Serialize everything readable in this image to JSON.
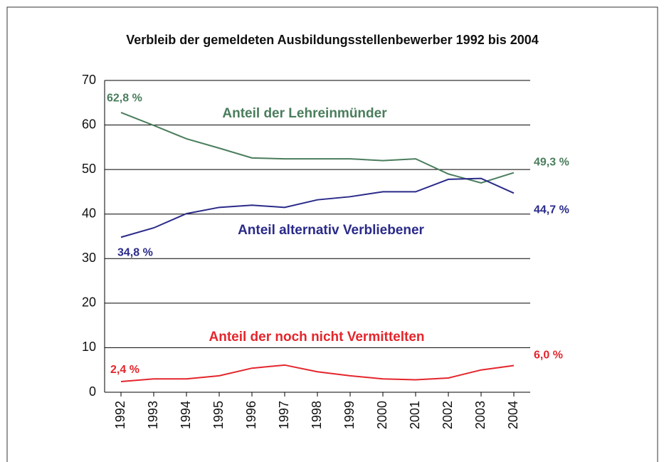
{
  "chart_data": {
    "type": "line",
    "title": "Verbleib der gemeldeten Ausbildungsstellenbewerber 1992 bis 2004",
    "categories": [
      "1992",
      "1993",
      "1994",
      "1995",
      "1996",
      "1997",
      "1998",
      "1999",
      "2000",
      "2001",
      "2002",
      "2003",
      "2004"
    ],
    "ylim": [
      0,
      70
    ],
    "yticks": [
      0,
      10,
      20,
      30,
      40,
      50,
      60,
      70
    ],
    "grid": true,
    "series": [
      {
        "name": "Anteil der Lehreinmünder",
        "color": "#4a7d5c",
        "values": [
          62.8,
          59.9,
          56.9,
          54.8,
          52.6,
          52.4,
          52.4,
          52.4,
          52.0,
          52.4,
          49.0,
          47.0,
          49.3
        ],
        "value_labels": [
          "62,8 %",
          null,
          null,
          null,
          null,
          null,
          null,
          null,
          null,
          null,
          null,
          null,
          "49,3 %"
        ]
      },
      {
        "name": "Anteil alternativ Verbliebener",
        "color": "#2a2a8a",
        "values": [
          34.8,
          36.9,
          40.1,
          41.5,
          42.0,
          41.5,
          43.2,
          43.9,
          45.0,
          45.0,
          47.8,
          48.0,
          44.7
        ],
        "value_labels": [
          "34,8 %",
          null,
          null,
          null,
          null,
          null,
          null,
          null,
          null,
          null,
          null,
          null,
          "44,7 %"
        ]
      },
      {
        "name": "Anteil der noch nicht Vermittelten",
        "color": "#e4262c",
        "values": [
          2.4,
          3.0,
          3.0,
          3.7,
          5.4,
          6.1,
          4.6,
          3.7,
          3.0,
          2.8,
          3.2,
          5.0,
          6.0
        ],
        "value_labels": [
          "2,4 %",
          null,
          null,
          null,
          null,
          null,
          null,
          null,
          null,
          null,
          null,
          null,
          "6,0 %"
        ]
      }
    ]
  }
}
